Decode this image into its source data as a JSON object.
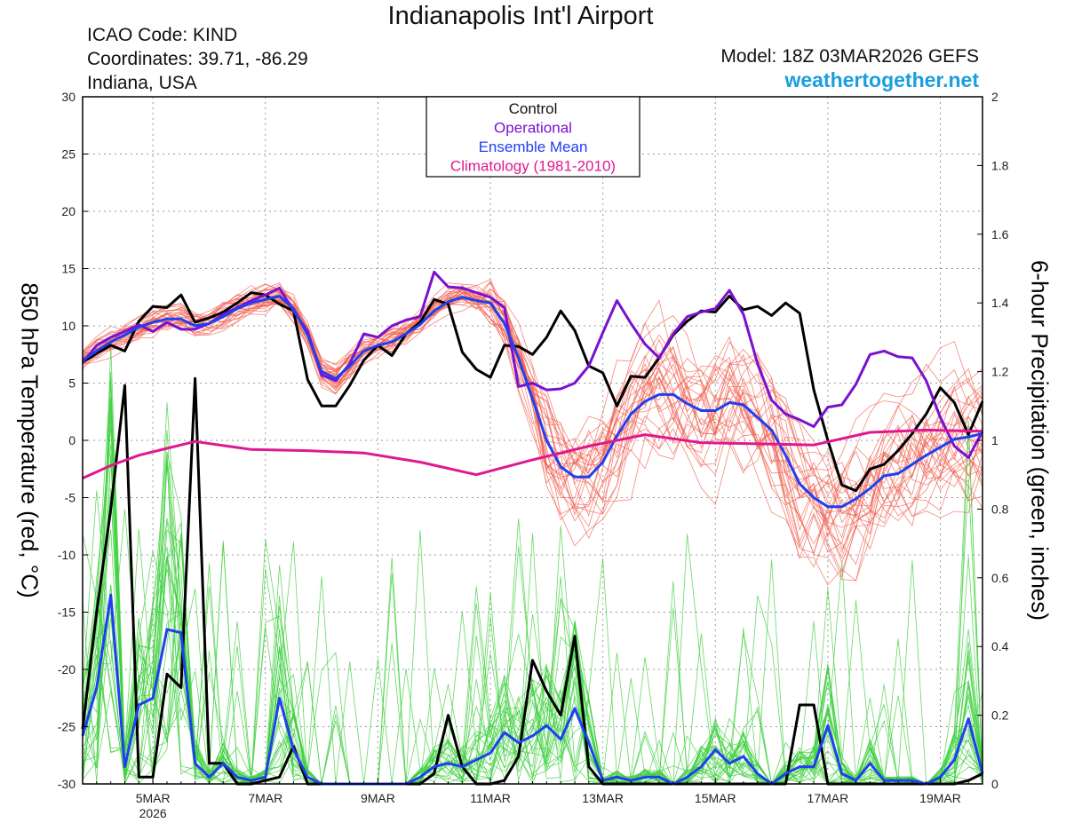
{
  "header": {
    "title": "Indianapolis Int'l Airport",
    "icao": "ICAO Code: KIND",
    "coordinates": "Coordinates: 39.71, -86.29",
    "region": "Indiana, USA",
    "model": "Model: 18Z 03MAR2026 GEFS",
    "site": "weathertogether.net"
  },
  "colors": {
    "control": "#000000",
    "operational": "#7a10d0",
    "ensemble_mean": "#2040f0",
    "climatology": "#e01890",
    "members_temp": "#f06050",
    "members_precip": "#40d040",
    "site": "#1a9ee0"
  },
  "chart_data": {
    "type": "line",
    "title": "Indianapolis Int'l Airport",
    "ylabel": "850 hPa Temperature (red, °C)",
    "y2label": "6-hour Precipitation (green, inches)",
    "xlim": [
      3.75,
      19.75
    ],
    "ylim": [
      -30,
      30
    ],
    "y2lim": [
      0,
      2
    ],
    "yticks": [
      -30,
      -25,
      -20,
      -15,
      -10,
      -5,
      0,
      5,
      10,
      15,
      20,
      25,
      30
    ],
    "y2ticks": [
      0,
      0.2,
      0.4,
      0.6,
      0.8,
      1,
      1.2,
      1.4,
      1.6,
      1.8,
      2
    ],
    "x_ticks": [
      {
        "x": 5,
        "label": "5MAR",
        "sub": "2026"
      },
      {
        "x": 7,
        "label": "7MAR",
        "sub": ""
      },
      {
        "x": 9,
        "label": "9MAR",
        "sub": ""
      },
      {
        "x": 11,
        "label": "11MAR",
        "sub": ""
      },
      {
        "x": 13,
        "label": "13MAR",
        "sub": ""
      },
      {
        "x": 15,
        "label": "15MAR",
        "sub": ""
      },
      {
        "x": 17,
        "label": "17MAR",
        "sub": ""
      },
      {
        "x": 19,
        "label": "19MAR",
        "sub": ""
      }
    ],
    "legend": {
      "position": "top-center",
      "entries": [
        {
          "label": "Control",
          "color": "#111111"
        },
        {
          "label": "Operational",
          "color": "#7a10d0"
        },
        {
          "label": "Ensemble Mean",
          "color": "#2040f0"
        },
        {
          "label": "Climatology (1981-2010)",
          "color": "#e01890"
        }
      ]
    },
    "temperature_series": [
      {
        "name": "Control",
        "x": [
          3.75,
          4.0,
          4.25,
          4.5,
          4.75,
          5.0,
          5.25,
          5.5,
          5.75,
          6.0,
          6.25,
          6.5,
          6.75,
          7.0,
          7.25,
          7.5,
          7.75,
          8.0,
          8.25,
          8.5,
          8.75,
          9.0,
          9.25,
          9.5,
          9.75,
          10.0,
          10.25,
          10.5,
          10.75,
          11.0,
          11.25,
          11.5,
          11.75,
          12.0,
          12.25,
          12.5,
          12.75,
          13.0,
          13.25,
          13.5,
          13.75,
          14.0,
          14.25,
          14.5,
          14.75,
          15.0,
          15.25,
          15.5,
          15.75,
          16.0,
          16.25,
          16.5,
          16.75,
          17.0,
          17.25,
          17.5,
          17.75,
          18.0,
          18.25,
          18.5,
          18.75,
          19.0,
          19.25,
          19.5,
          19.75
        ],
        "values": [
          6.8,
          7.6,
          8.3,
          7.8,
          10.4,
          11.7,
          11.6,
          12.7,
          10.3,
          10.7,
          11.2,
          12.0,
          12.9,
          12.7,
          11.9,
          11.3,
          5.3,
          3.0,
          3.0,
          4.8,
          7.0,
          8.3,
          7.4,
          9.3,
          10.3,
          12.3,
          11.9,
          7.7,
          6.2,
          5.5,
          8.3,
          8.2,
          7.5,
          9.0,
          11.3,
          9.6,
          6.5,
          5.9,
          3.0,
          5.6,
          5.5,
          7.2,
          9.2,
          10.4,
          11.3,
          11.2,
          12.6,
          11.4,
          11.7,
          10.9,
          12.0,
          11.1,
          4.4,
          0.0,
          -3.9,
          -4.4,
          -2.5,
          -2.1,
          -0.9,
          0.6,
          2.3,
          4.6,
          3.3,
          0.5,
          3.4
        ]
      },
      {
        "name": "Operational",
        "x": [
          3.75,
          4.0,
          4.25,
          4.5,
          4.75,
          5.0,
          5.25,
          5.5,
          5.75,
          6.0,
          6.25,
          6.5,
          6.75,
          7.0,
          7.25,
          7.5,
          7.75,
          8.0,
          8.25,
          8.5,
          8.75,
          9.0,
          9.25,
          9.5,
          9.75,
          10.0,
          10.25,
          10.5,
          10.75,
          11.0,
          11.25,
          11.5,
          11.75,
          12.0,
          12.25,
          12.5,
          12.75,
          13.0,
          13.25,
          13.5,
          13.75,
          14.0,
          14.25,
          14.5,
          14.75,
          15.0,
          15.25,
          15.5,
          15.75,
          16.0,
          16.25,
          16.5,
          16.75,
          17.0,
          17.25,
          17.5,
          17.75,
          18.0,
          18.25,
          18.5,
          18.75,
          19.0,
          19.25,
          19.5,
          19.75
        ],
        "values": [
          6.8,
          8.3,
          9.0,
          9.5,
          10.1,
          9.5,
          10.3,
          9.7,
          9.7,
          10.2,
          11.0,
          11.6,
          12.2,
          12.7,
          13.3,
          11.3,
          9.5,
          5.7,
          5.2,
          6.7,
          9.3,
          9.0,
          10.0,
          10.5,
          10.8,
          14.7,
          13.4,
          13.3,
          12.9,
          12.5,
          11.6,
          4.7,
          5.0,
          4.4,
          4.5,
          5.0,
          6.5,
          9.4,
          12.2,
          10.2,
          8.4,
          7.2,
          9.3,
          10.8,
          11.2,
          11.5,
          13.1,
          11.0,
          6.7,
          3.5,
          2.3,
          1.8,
          1.2,
          2.9,
          3.1,
          4.9,
          7.5,
          7.8,
          7.3,
          7.2,
          5.2,
          2.0,
          -0.5,
          -1.5,
          0.8
        ]
      },
      {
        "name": "Ensemble Mean",
        "x": [
          3.75,
          4.0,
          4.25,
          4.5,
          4.75,
          5.0,
          5.25,
          5.5,
          5.75,
          6.0,
          6.25,
          6.5,
          6.75,
          7.0,
          7.25,
          7.5,
          7.75,
          8.0,
          8.25,
          8.5,
          8.75,
          9.0,
          9.25,
          9.5,
          9.75,
          10.0,
          10.25,
          10.5,
          10.75,
          11.0,
          11.25,
          11.5,
          11.75,
          12.0,
          12.25,
          12.5,
          12.75,
          13.0,
          13.25,
          13.5,
          13.75,
          14.0,
          14.25,
          14.5,
          14.75,
          15.0,
          15.25,
          15.5,
          15.75,
          16.0,
          16.25,
          16.5,
          16.75,
          17.0,
          17.25,
          17.5,
          17.75,
          18.0,
          18.25,
          18.5,
          18.75,
          19.0,
          19.25,
          19.5,
          19.75
        ],
        "values": [
          7.0,
          7.8,
          8.6,
          9.2,
          9.9,
          10.3,
          10.6,
          10.6,
          10.0,
          10.2,
          10.8,
          11.5,
          12.0,
          12.3,
          12.6,
          11.5,
          9.2,
          6.0,
          5.4,
          6.5,
          7.8,
          8.3,
          8.6,
          9.3,
          10.1,
          11.3,
          12.1,
          12.5,
          12.2,
          12.0,
          10.2,
          7.2,
          3.6,
          0.0,
          -2.3,
          -3.2,
          -3.2,
          -1.9,
          0.4,
          2.3,
          3.4,
          4.0,
          4.0,
          3.2,
          2.6,
          2.6,
          3.3,
          3.1,
          2.0,
          0.9,
          -1.3,
          -3.8,
          -5.0,
          -5.8,
          -5.8,
          -5.1,
          -4.2,
          -3.1,
          -2.9,
          -2.1,
          -1.3,
          -0.6,
          0.1,
          0.3,
          0.6
        ]
      },
      {
        "name": "Climatology (1981-2010)",
        "x": [
          3.75,
          4.25,
          4.75,
          5.25,
          5.75,
          6.75,
          7.75,
          8.75,
          9.75,
          10.75,
          11.75,
          12.75,
          13.75,
          14.75,
          15.75,
          16.75,
          17.75,
          18.75,
          19.75
        ],
        "values": [
          -3.3,
          -2.2,
          -1.3,
          -0.7,
          -0.1,
          -0.8,
          -0.9,
          -1.1,
          -1.9,
          -3.0,
          -1.7,
          -0.5,
          0.5,
          -0.2,
          -0.3,
          -0.4,
          0.7,
          0.9,
          0.8
        ]
      }
    ],
    "precipitation_series": [
      {
        "name": "Control",
        "x": [
          3.75,
          4.0,
          4.25,
          4.5,
          4.75,
          5.0,
          5.25,
          5.5,
          5.75,
          6.0,
          6.25,
          6.5,
          6.75,
          7.0,
          7.25,
          7.5,
          7.75,
          8.0,
          8.25,
          8.5,
          8.75,
          9.0,
          9.25,
          9.5,
          9.75,
          10.0,
          10.25,
          10.5,
          10.75,
          11.0,
          11.25,
          11.5,
          11.75,
          12.0,
          12.25,
          12.5,
          12.75,
          13.0,
          13.25,
          13.5,
          13.75,
          14.0,
          14.25,
          14.5,
          14.75,
          15.0,
          15.25,
          15.5,
          15.75,
          16.0,
          16.25,
          16.5,
          16.75,
          17.0,
          17.25,
          17.5,
          17.75,
          18.0,
          18.25,
          18.5,
          18.75,
          19.0,
          19.25,
          19.5,
          19.75
        ],
        "values": [
          0.16,
          0.5,
          0.8,
          1.16,
          0.02,
          0.02,
          0.32,
          0.28,
          1.18,
          0.06,
          0.06,
          0.0,
          0.0,
          0.01,
          0.02,
          0.11,
          0.0,
          0.0,
          0.0,
          0.0,
          0.0,
          0.0,
          0.0,
          0.0,
          0.0,
          0.03,
          0.2,
          0.05,
          0.0,
          0.0,
          0.01,
          0.08,
          0.36,
          0.27,
          0.2,
          0.43,
          0.05,
          0.0,
          0.0,
          0.0,
          0.0,
          0.0,
          0.0,
          0.0,
          0.0,
          0.0,
          0.0,
          0.0,
          0.0,
          0.0,
          0.0,
          0.23,
          0.23,
          0.0,
          0.0,
          0.0,
          0.0,
          0.0,
          0.0,
          0.0,
          0.0,
          0.0,
          0.0,
          0.01,
          0.03
        ]
      },
      {
        "name": "Ensemble Mean",
        "x": [
          3.75,
          4.0,
          4.25,
          4.5,
          4.75,
          5.0,
          5.25,
          5.5,
          5.75,
          6.0,
          6.25,
          6.5,
          6.75,
          7.0,
          7.25,
          7.5,
          7.75,
          8.0,
          8.25,
          8.5,
          8.75,
          9.0,
          9.25,
          9.5,
          9.75,
          10.0,
          10.25,
          10.5,
          10.75,
          11.0,
          11.25,
          11.5,
          11.75,
          12.0,
          12.25,
          12.5,
          12.75,
          13.0,
          13.25,
          13.5,
          13.75,
          14.0,
          14.25,
          14.5,
          14.75,
          15.0,
          15.25,
          15.5,
          15.75,
          16.0,
          16.25,
          16.5,
          16.75,
          17.0,
          17.25,
          17.5,
          17.75,
          18.0,
          18.25,
          18.5,
          18.75,
          19.0,
          19.25,
          19.5,
          19.75
        ],
        "values": [
          0.14,
          0.28,
          0.55,
          0.05,
          0.23,
          0.25,
          0.45,
          0.44,
          0.06,
          0.02,
          0.06,
          0.02,
          0.01,
          0.02,
          0.25,
          0.1,
          0.02,
          0.0,
          0.0,
          0.0,
          0.0,
          0.0,
          0.0,
          0.0,
          0.02,
          0.05,
          0.06,
          0.05,
          0.07,
          0.09,
          0.15,
          0.12,
          0.14,
          0.17,
          0.13,
          0.22,
          0.12,
          0.01,
          0.02,
          0.01,
          0.02,
          0.02,
          0.0,
          0.02,
          0.05,
          0.1,
          0.06,
          0.08,
          0.03,
          0.0,
          0.03,
          0.05,
          0.05,
          0.17,
          0.03,
          0.01,
          0.06,
          0.01,
          0.01,
          0.01,
          0.0,
          0.02,
          0.07,
          0.19,
          0.03
        ]
      }
    ],
    "member_count": 30
  }
}
